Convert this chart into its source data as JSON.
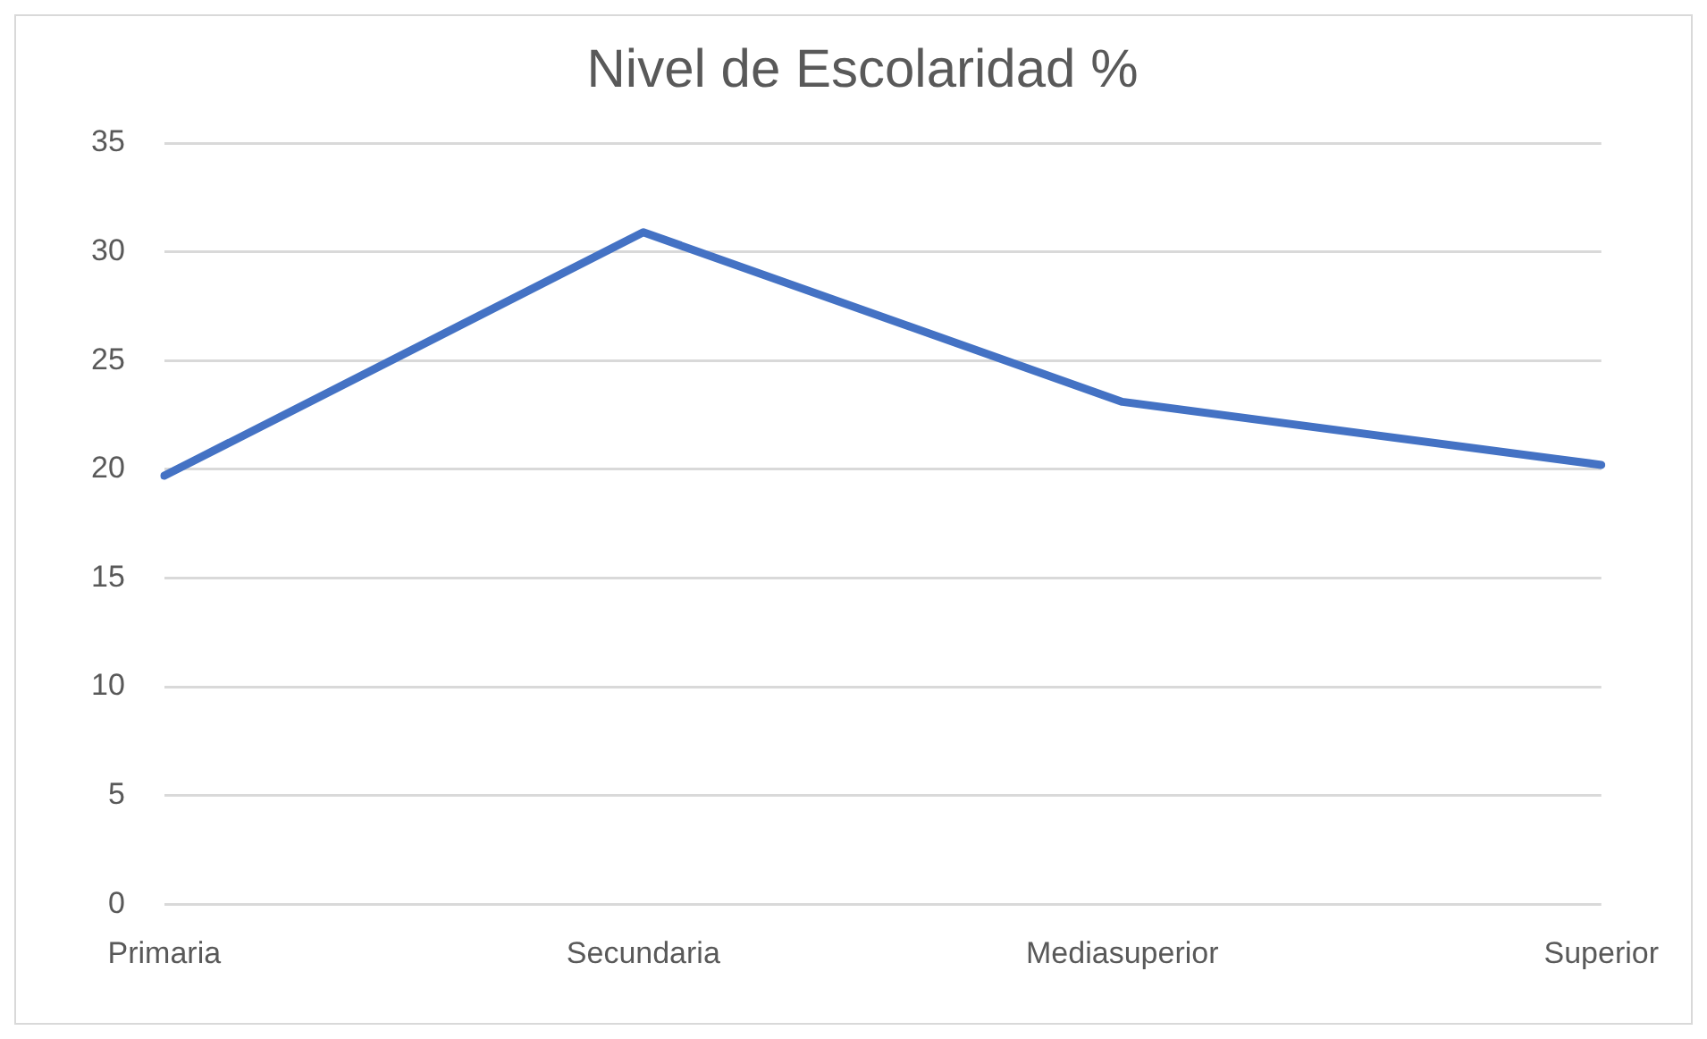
{
  "chart_data": {
    "type": "line",
    "title": "Nivel de Escolaridad %",
    "categories": [
      "Primaria",
      "Secundaria",
      "Mediasuperior",
      "Superior"
    ],
    "series": [
      {
        "color": "#4472c4",
        "values": [
          19.7,
          30.9,
          23.1,
          20.2
        ]
      }
    ],
    "ylim": [
      0,
      35
    ],
    "yticks": [
      0,
      5,
      10,
      15,
      20,
      25,
      30,
      35
    ],
    "grid": "y",
    "legend": false,
    "marker": "none",
    "line_style": "solid"
  }
}
